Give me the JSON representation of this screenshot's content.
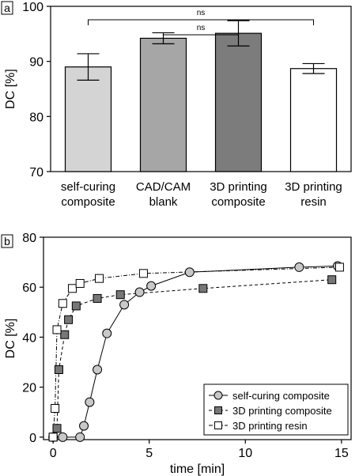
{
  "chart_data": [
    {
      "panel_label": "a",
      "type": "bar",
      "categories": [
        [
          "self-curing",
          "composite"
        ],
        [
          "CAD/CAM",
          "blank"
        ],
        [
          "3D printing",
          "composite"
        ],
        [
          "3D printing",
          "resin"
        ]
      ],
      "values": [
        89.0,
        94.2,
        95.1,
        88.7
      ],
      "errors": [
        2.4,
        1.0,
        2.3,
        0.9
      ],
      "colors": [
        "#d4d4d4",
        "#a6a6a6",
        "#7c7c7c",
        "#ffffff"
      ],
      "ylabel": "DC [%]",
      "ylim": [
        70,
        100
      ],
      "yticks": [
        "70",
        "80",
        "90",
        "100"
      ],
      "significance": [
        {
          "from": 0,
          "to": 3,
          "label": "ns"
        },
        {
          "from": 1,
          "to": 2,
          "label": "ns"
        }
      ]
    },
    {
      "panel_label": "b",
      "type": "line",
      "xlabel": "time [min]",
      "ylabel": "DC [%]",
      "xlim": [
        -0.5,
        15.5
      ],
      "ylim": [
        -1,
        80
      ],
      "xticks": [
        "0",
        "5",
        "10",
        "15"
      ],
      "yticks": [
        "0",
        "20",
        "40",
        "60",
        "80"
      ],
      "legend_position": "bottom-right",
      "series": [
        {
          "name": "self-curing composite",
          "marker": "circle",
          "fill": "#c8c8c8",
          "dash": "solid",
          "x": [
            0,
            0.5,
            1.4,
            1.6,
            1.9,
            2.3,
            2.8,
            3.7,
            4.5,
            5.1,
            7.1,
            12.8,
            14.8
          ],
          "y": [
            0,
            0,
            0,
            4.5,
            14,
            27,
            41.5,
            53,
            58,
            60.5,
            66,
            68,
            68.5
          ]
        },
        {
          "name": "3D printing composite",
          "marker": "square",
          "fill": "#777777",
          "dash": "dashed",
          "x": [
            0,
            0.2,
            0.3,
            0.6,
            0.8,
            1.2,
            2.3,
            3.5,
            7.8,
            14.5
          ],
          "y": [
            0,
            3.5,
            27,
            41,
            47,
            52.5,
            55.5,
            57,
            59.5,
            63
          ]
        },
        {
          "name": "3D printing resin",
          "marker": "square",
          "fill": "#ffffff",
          "dash": "dashdot",
          "x": [
            0,
            0.1,
            0.2,
            0.5,
            1.0,
            1.4,
            2.4,
            4.7,
            14.9
          ],
          "y": [
            0,
            11.5,
            43,
            53.5,
            59.5,
            61.5,
            63.5,
            65.5,
            68
          ]
        }
      ]
    }
  ]
}
